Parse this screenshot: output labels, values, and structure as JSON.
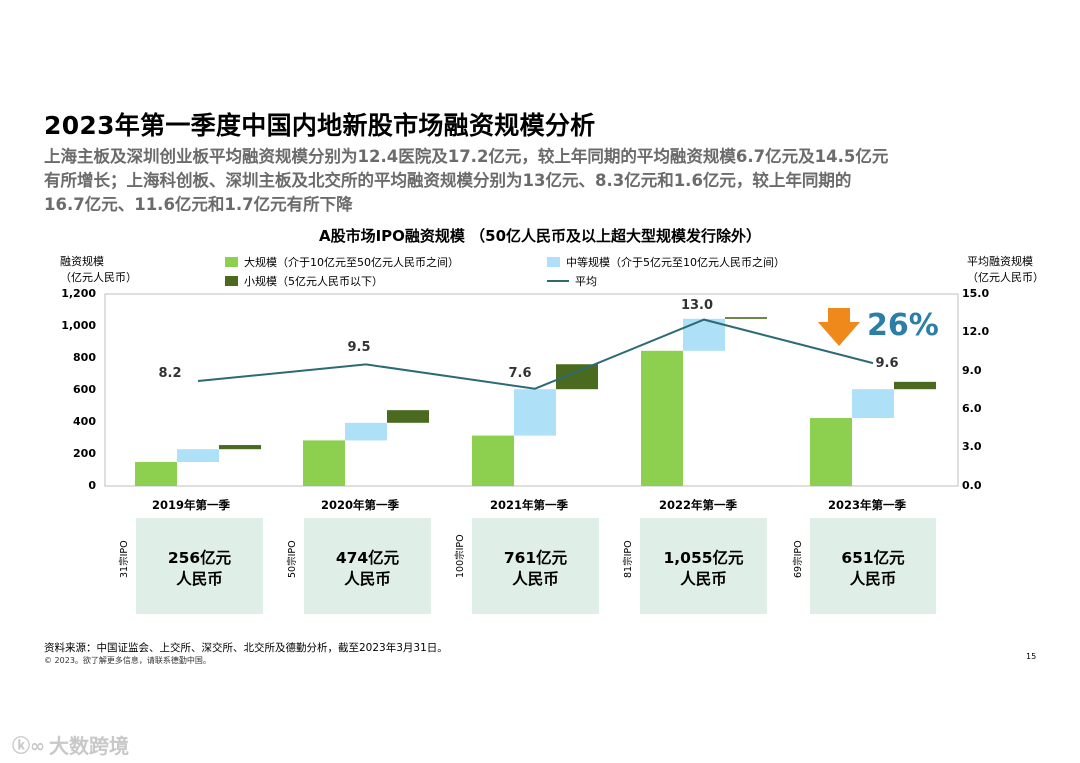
{
  "title": "2023年第一季度中国内地新股市场融资规模分析",
  "subtitle_lines": [
    "上海主板及深圳创业板平均融资规模分别为12.4医院及17.2亿元，较上年同期的平均融资规模6.7亿元及14.5亿元",
    "有所增长；上海科创板、深圳主板及北交所的平均融资规模分别为13亿元、8.3亿元和1.6亿元，较上年同期的",
    "16.7亿元、11.6亿元和1.7亿元有所下降"
  ],
  "chart_data": {
    "type": "bar",
    "title": "A股市场IPO融资规模 （50亿人民币及以上超大型规模发行除外）",
    "ylabel_lines": [
      "融资规模",
      "（亿元人民币）"
    ],
    "y2label_lines": [
      "平均融资规模",
      "（亿元人民币）"
    ],
    "ylim": [
      0,
      1200
    ],
    "y2lim": [
      0,
      15
    ],
    "yticks": [
      "1,200",
      "1,000",
      "800",
      "600",
      "400",
      "200",
      "0"
    ],
    "y2ticks": [
      "15.0",
      "12.0",
      "9.0",
      "6.0",
      "3.0",
      "0.0"
    ],
    "categories": [
      "2019年第一季",
      "2020年第一季",
      "2021年第一季",
      "2022年第一季",
      "2023年第一季"
    ],
    "series": [
      {
        "name": "大规模（介于10亿元至50亿元人民币之间）",
        "values": [
          150,
          285,
          315,
          845,
          425
        ]
      },
      {
        "name": "中等规模（介于5亿元至10亿元人民币之间）",
        "values": [
          80,
          110,
          290,
          200,
          180
        ]
      },
      {
        "name": "小规模（5亿元人民币以下）",
        "values": [
          26,
          79,
          156,
          10,
          46
        ]
      },
      {
        "name": "平均",
        "values": [
          8.2,
          9.5,
          7.6,
          13.0,
          9.6
        ]
      }
    ],
    "avg_labels": [
      "8.2",
      "9.5",
      "7.6",
      "13.0",
      "9.6"
    ],
    "annotation": "26%",
    "totals": [
      {
        "ipo": "31宗IPO",
        "line1": "256亿元",
        "line2": "人民币"
      },
      {
        "ipo": "50宗IPO",
        "line1": "474亿元",
        "line2": "人民币"
      },
      {
        "ipo": "100宗IPO",
        "line1": "761亿元",
        "line2": "人民币"
      },
      {
        "ipo": "81宗IPO",
        "line1": "1,055亿元",
        "line2": "人民币"
      },
      {
        "ipo": "69宗IPO",
        "line1": "651亿元",
        "line2": "人民币"
      }
    ]
  },
  "colors": {
    "large": "#8dcf4f",
    "medium": "#aee0f7",
    "small": "#4a6a1f",
    "avg": "#2d6b74",
    "arrow": "#f0891c",
    "pct": "#2b7fa6"
  },
  "footer": {
    "source": "资料来源：中国证监会、上交所、深交所、北交所及德勤分析，截至2023年3月31日。",
    "copyright": "© 2023。欲了解更多信息，请联系德勤中国。",
    "page": "15"
  },
  "watermark": "大数跨境"
}
